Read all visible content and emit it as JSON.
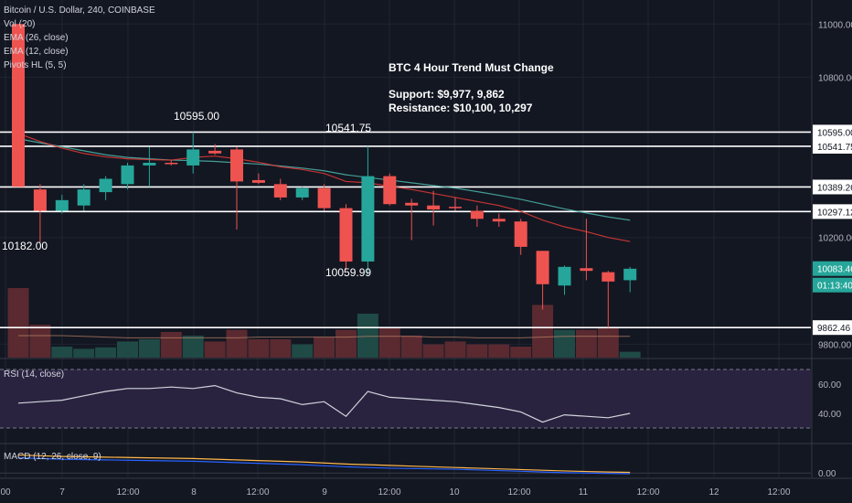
{
  "symbol_title": "Bitcoin / U.S. Dollar, 240, COINBASE",
  "indicators": [
    "Vol (20)",
    "EMA (26, close)",
    "EMA (12, close)",
    "Pivots HL (5, 5)"
  ],
  "rsi_label": "RSI (14, close)",
  "macd_label": "MACD (12, 26, close, 9)",
  "annotation": {
    "title": "BTC 4 Hour Trend Must Change",
    "support": "Support: $9,977, 9,862",
    "resistance": "Resistance: $10,100, 10,297"
  },
  "pivot_labels": [
    {
      "text": "10595.00",
      "value": 10595,
      "index": 8
    },
    {
      "text": "10541.75",
      "value": 10541.75,
      "index": 15
    },
    {
      "text": "10182.00",
      "value": 10182,
      "index": 0
    },
    {
      "text": "10059.99",
      "value": 10059.99,
      "index": 15
    }
  ],
  "colors": {
    "background": "#131722",
    "up": "#26a69a",
    "down": "#ef5350",
    "ema26": "#4db6ac",
    "ema12": "#e53935",
    "rsi": "#d1d4dc",
    "macd": "#2962ff",
    "signal": "#ffb74d",
    "line_highlight": "#1e88e5"
  },
  "chart_data": {
    "type": "candlestick",
    "price_axis": {
      "ticks": [
        11000,
        10800,
        10200,
        9800
      ],
      "range": [
        9750,
        11090
      ]
    },
    "time_axis": [
      "00",
      "7",
      "12:00",
      "8",
      "12:00",
      "9",
      "12:00",
      "10",
      "12:00",
      "11",
      "12:00",
      "12",
      "12:00"
    ],
    "horizontal_lines": [
      10595.0,
      10541.75,
      10389.26,
      10297.12,
      9862.46
    ],
    "price_badges": [
      {
        "text": "10595.00",
        "value": 10595.0,
        "style": "line"
      },
      {
        "text": "10541.75",
        "value": 10541.75,
        "style": "line"
      },
      {
        "text": "10389.26",
        "value": 10389.26,
        "style": "line"
      },
      {
        "text": "10297.12",
        "value": 10297.12,
        "style": "line"
      },
      {
        "text": "9862.46",
        "value": 9862.46,
        "style": "line"
      },
      {
        "text": "10083.46",
        "value": 10083.46,
        "style": "up"
      },
      {
        "text": "01:13:40",
        "value": 10020,
        "style": "up"
      }
    ],
    "candles": [
      {
        "o": 11000,
        "h": 11000,
        "l": 10390,
        "c": 10390
      },
      {
        "o": 10380,
        "h": 10400,
        "l": 10182,
        "c": 10300
      },
      {
        "o": 10300,
        "h": 10360,
        "l": 10290,
        "c": 10340
      },
      {
        "o": 10320,
        "h": 10400,
        "l": 10300,
        "c": 10380
      },
      {
        "o": 10370,
        "h": 10430,
        "l": 10340,
        "c": 10420
      },
      {
        "o": 10400,
        "h": 10480,
        "l": 10380,
        "c": 10470
      },
      {
        "o": 10470,
        "h": 10540,
        "l": 10390,
        "c": 10480
      },
      {
        "o": 10480,
        "h": 10490,
        "l": 10470,
        "c": 10475
      },
      {
        "o": 10470,
        "h": 10595,
        "l": 10440,
        "c": 10530
      },
      {
        "o": 10525,
        "h": 10550,
        "l": 10510,
        "c": 10515
      },
      {
        "o": 10530,
        "h": 10540,
        "l": 10230,
        "c": 10410
      },
      {
        "o": 10415,
        "h": 10440,
        "l": 10400,
        "c": 10405
      },
      {
        "o": 10400,
        "h": 10420,
        "l": 10340,
        "c": 10350
      },
      {
        "o": 10350,
        "h": 10390,
        "l": 10340,
        "c": 10385
      },
      {
        "o": 10385,
        "h": 10400,
        "l": 10300,
        "c": 10310
      },
      {
        "o": 10310,
        "h": 10325,
        "l": 10080,
        "c": 10110
      },
      {
        "o": 10110,
        "h": 10541.75,
        "l": 10060,
        "c": 10430
      },
      {
        "o": 10430,
        "h": 10440,
        "l": 10320,
        "c": 10325
      },
      {
        "o": 10330,
        "h": 10345,
        "l": 10190,
        "c": 10320
      },
      {
        "o": 10320,
        "h": 10375,
        "l": 10245,
        "c": 10305
      },
      {
        "o": 10315,
        "h": 10350,
        "l": 10300,
        "c": 10310
      },
      {
        "o": 10300,
        "h": 10320,
        "l": 10240,
        "c": 10270
      },
      {
        "o": 10270,
        "h": 10290,
        "l": 10240,
        "c": 10260
      },
      {
        "o": 10260,
        "h": 10270,
        "l": 10135,
        "c": 10165
      },
      {
        "o": 10150,
        "h": 10150,
        "l": 9930,
        "c": 10025
      },
      {
        "o": 10020,
        "h": 10095,
        "l": 9985,
        "c": 10090
      },
      {
        "o": 10085,
        "h": 10270,
        "l": 10040,
        "c": 10075
      },
      {
        "o": 10070,
        "h": 10075,
        "l": 9862,
        "c": 10035
      },
      {
        "o": 10040,
        "h": 10090,
        "l": 9995,
        "c": 10083
      }
    ],
    "ema26": [
      10570,
      10555,
      10540,
      10525,
      10510,
      10500,
      10495,
      10490,
      10488,
      10485,
      10480,
      10475,
      10468,
      10460,
      10450,
      10435,
      10425,
      10415,
      10405,
      10395,
      10385,
      10372,
      10358,
      10343,
      10325,
      10307,
      10292,
      10277,
      10265
    ],
    "ema12": [
      10590,
      10560,
      10535,
      10515,
      10502,
      10495,
      10492,
      10490,
      10500,
      10505,
      10495,
      10482,
      10465,
      10455,
      10440,
      10410,
      10405,
      10392,
      10380,
      10365,
      10350,
      10335,
      10320,
      10298,
      10265,
      10240,
      10222,
      10200,
      10185
    ],
    "volume": [
      0.95,
      0.45,
      0.15,
      0.12,
      0.14,
      0.22,
      0.25,
      0.35,
      0.3,
      0.22,
      0.38,
      0.25,
      0.25,
      0.18,
      0.28,
      0.38,
      0.6,
      0.4,
      0.3,
      0.18,
      0.22,
      0.18,
      0.18,
      0.15,
      0.72,
      0.38,
      0.38,
      0.42,
      0.08
    ],
    "volume_ma": [
      0.3,
      0.3,
      0.3,
      0.29,
      0.28,
      0.27,
      0.27,
      0.27,
      0.27,
      0.27,
      0.27,
      0.28,
      0.28,
      0.28,
      0.28,
      0.28,
      0.29,
      0.29,
      0.29,
      0.28,
      0.28,
      0.27,
      0.27,
      0.27,
      0.28,
      0.29,
      0.29,
      0.29,
      0.29
    ],
    "rsi": {
      "ticks": [
        60,
        40
      ],
      "range": [
        20,
        75
      ],
      "bands": [
        30,
        70
      ],
      "values": [
        47,
        48,
        49,
        52,
        55,
        57,
        57,
        58,
        57,
        59,
        54,
        51,
        50,
        46,
        48,
        38,
        55,
        51,
        50,
        49,
        48,
        46,
        44,
        41,
        34,
        39,
        38,
        37,
        40
      ]
    },
    "macd": {
      "ticks": [
        0.0
      ],
      "range": [
        -5,
        40
      ],
      "macd_line": [
        22,
        21,
        20,
        19.5,
        19,
        18.5,
        18,
        17.5,
        17,
        16,
        15,
        14,
        13,
        12,
        10.5,
        9,
        8,
        7,
        6.5,
        6,
        5.5,
        4.5,
        3.5,
        2.5,
        1.5,
        0.5,
        0,
        -0.5,
        -1
      ],
      "signal_line": [
        26,
        25,
        24,
        23.5,
        23,
        22.5,
        22,
        21.5,
        21,
        20,
        19,
        18,
        17,
        16,
        14.5,
        13,
        12,
        11,
        10,
        9,
        8,
        7,
        6,
        5,
        4,
        3,
        2.2,
        1.5,
        1
      ]
    }
  }
}
